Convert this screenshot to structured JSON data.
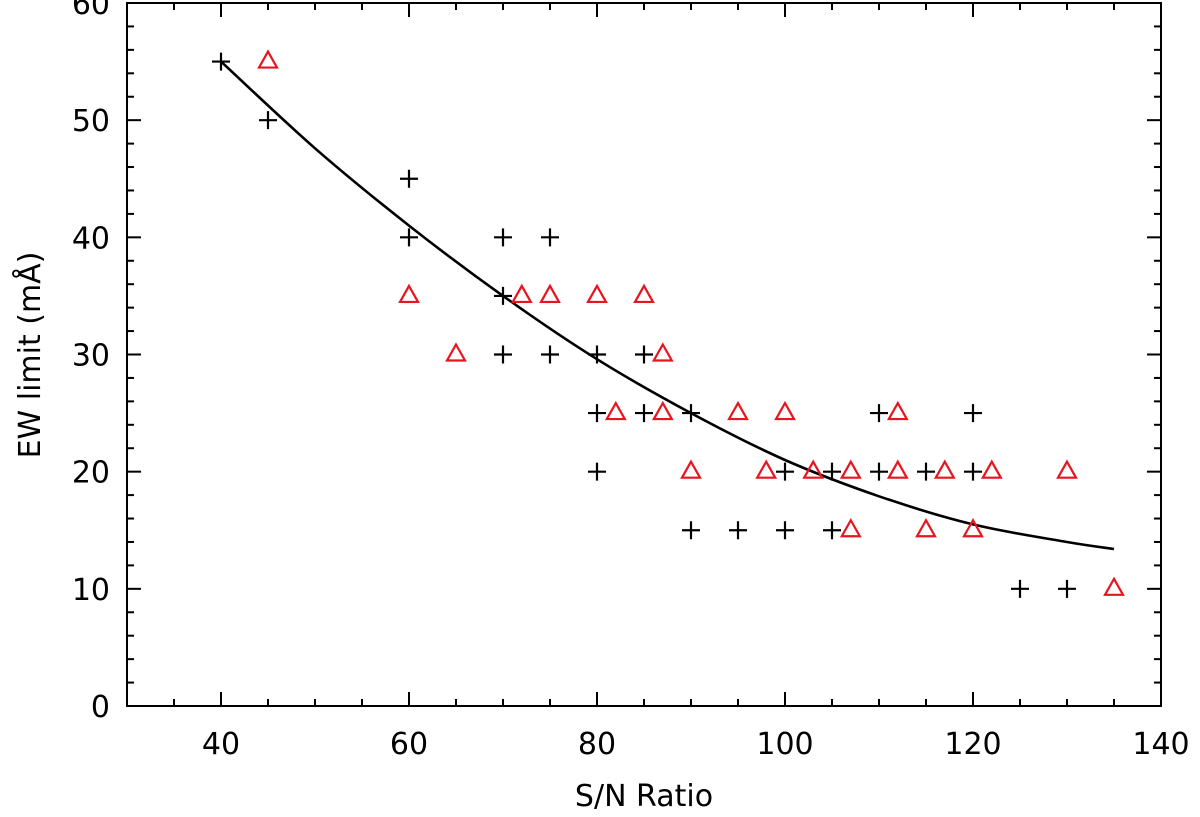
{
  "chart_data": {
    "type": "scatter",
    "title": "",
    "xlabel": "S/N Ratio",
    "ylabel": "EW limit   (mÅ)",
    "xlim": [
      30,
      140
    ],
    "ylim": [
      0,
      60
    ],
    "x_ticks": [
      40,
      60,
      80,
      100,
      120,
      140
    ],
    "y_ticks": [
      0,
      10,
      20,
      30,
      40,
      50,
      60
    ],
    "x_tick_labels": [
      "40",
      "60",
      "80",
      "100",
      "120",
      "140"
    ],
    "y_tick_labels": [
      "0",
      "10",
      "20",
      "30",
      "40",
      "50",
      "60"
    ],
    "x_minor_step": 5,
    "y_minor_step": 2,
    "grid": false,
    "series": [
      {
        "name": "plus",
        "marker": "plus",
        "color": "#000000",
        "x": [
          40,
          45,
          60,
          60,
          70,
          70,
          70,
          75,
          75,
          80,
          80,
          80,
          85,
          85,
          90,
          90,
          95,
          100,
          100,
          105,
          105,
          110,
          110,
          115,
          120,
          120,
          125,
          130
        ],
        "y": [
          55,
          50,
          45,
          40,
          40,
          35,
          30,
          40,
          30,
          30,
          25,
          20,
          30,
          25,
          25,
          15,
          15,
          20,
          15,
          20,
          15,
          25,
          20,
          20,
          25,
          20,
          10,
          10
        ]
      },
      {
        "name": "triangle",
        "marker": "triangle",
        "color": "#e8141e",
        "x": [
          45,
          60,
          65,
          72,
          75,
          80,
          82,
          85,
          87,
          87,
          90,
          95,
          98,
          100,
          103,
          107,
          107,
          112,
          112,
          115,
          117,
          120,
          122,
          130,
          135
        ],
        "y": [
          55,
          35,
          30,
          35,
          35,
          35,
          25,
          35,
          30,
          25,
          20,
          25,
          20,
          25,
          20,
          20,
          15,
          25,
          20,
          15,
          20,
          15,
          20,
          20,
          10
        ]
      },
      {
        "name": "fit",
        "type": "line",
        "color": "#000000",
        "x": [
          40,
          50,
          60,
          70,
          80,
          90,
          100,
          110,
          120,
          130,
          135
        ],
        "y": [
          55.0,
          47.6,
          41.0,
          35.0,
          29.6,
          25.0,
          21.0,
          17.9,
          15.5,
          14.0,
          13.4
        ]
      }
    ]
  }
}
